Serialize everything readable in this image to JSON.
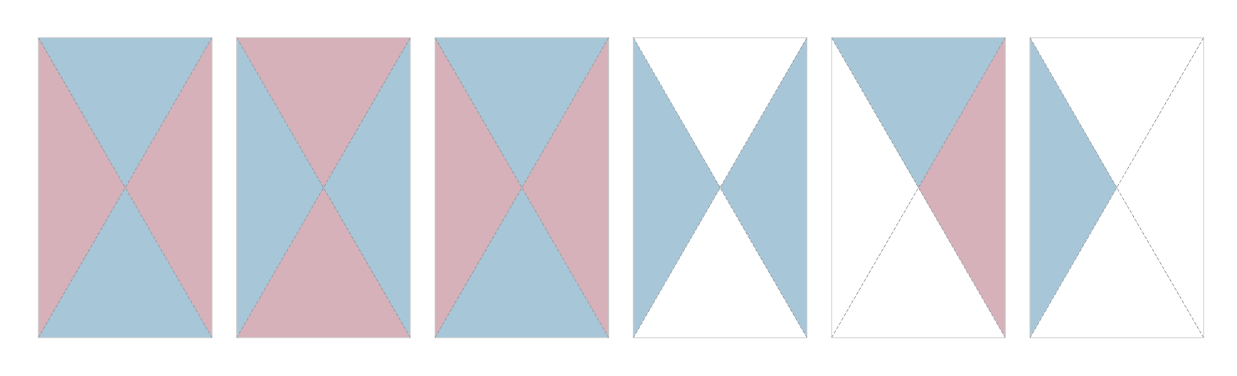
{
  "colors": {
    "blue": "#a7c7d8",
    "pink": "#d6b1b9",
    "empty": "#ffffff",
    "edge": "#8f959b",
    "frame": "#c9c9c9"
  },
  "panels": [
    {
      "name": "panel-1",
      "top": "blue",
      "right": "pink",
      "bottom": "blue",
      "left": "pink"
    },
    {
      "name": "panel-2",
      "top": "pink",
      "right": "blue",
      "bottom": "pink",
      "left": "blue"
    },
    {
      "name": "panel-3",
      "top": "blue",
      "right": "pink",
      "bottom": "blue",
      "left": "pink"
    },
    {
      "name": "panel-4",
      "top": "empty",
      "right": "blue",
      "bottom": "empty",
      "left": "blue"
    },
    {
      "name": "panel-5",
      "top": "blue",
      "right": "pink",
      "bottom": "empty",
      "left": "empty"
    },
    {
      "name": "panel-6",
      "top": "empty",
      "right": "empty",
      "bottom": "empty",
      "left": "blue"
    }
  ]
}
